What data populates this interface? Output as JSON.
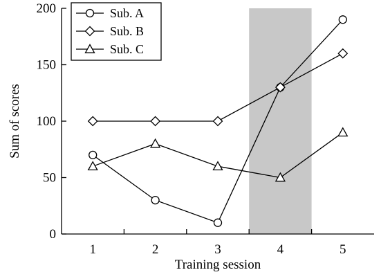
{
  "chart_data": {
    "type": "line",
    "xlabel": "Training session",
    "ylabel": "Sum of  scores",
    "x": [
      1,
      2,
      3,
      4,
      5
    ],
    "xlim": [
      0.5,
      5.5
    ],
    "ylim": [
      0,
      200
    ],
    "yticks": [
      0,
      50,
      100,
      150,
      200
    ],
    "grid": false,
    "legend_position": "top-left",
    "highlight_x_range": [
      3.5,
      4.5
    ],
    "highlight_color": "#c8c8c8",
    "line_color": "#000000",
    "series": [
      {
        "name": "Sub. A",
        "marker": "circle",
        "values": [
          70,
          30,
          10,
          130,
          190
        ]
      },
      {
        "name": "Sub. B",
        "marker": "diamond",
        "values": [
          100,
          100,
          100,
          130,
          160
        ]
      },
      {
        "name": "Sub. C",
        "marker": "triangle",
        "values": [
          60,
          80,
          60,
          50,
          90
        ]
      }
    ]
  }
}
